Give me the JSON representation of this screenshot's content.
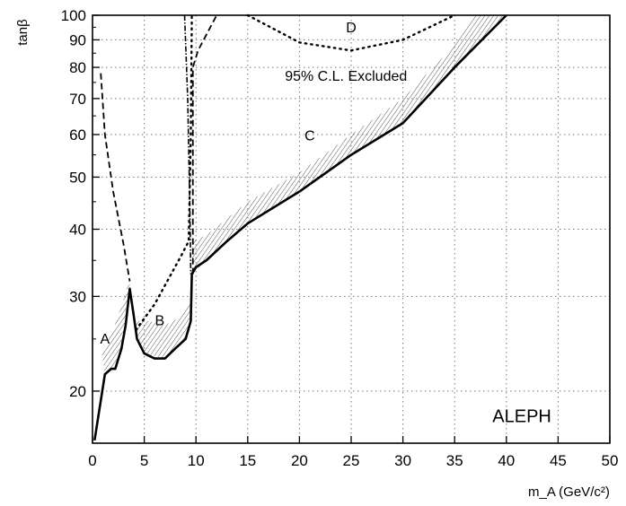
{
  "chart_data": {
    "type": "line",
    "title": "",
    "xlabel": "m_A (GeV/c²)",
    "ylabel": "tanβ",
    "xlim": [
      0,
      50
    ],
    "ylim": [
      16,
      100
    ],
    "yscale": "log",
    "grid": true,
    "x_ticks": [
      0,
      5,
      10,
      15,
      20,
      25,
      30,
      35,
      40,
      45,
      50
    ],
    "y_ticks": [
      20,
      30,
      40,
      50,
      60,
      70,
      80,
      90,
      100
    ],
    "series": [
      {
        "style": "solid",
        "points": [
          [
            0.2,
            16.2
          ],
          [
            1.2,
            21.5
          ],
          [
            1.8,
            22
          ],
          [
            2.2,
            22
          ],
          [
            2.8,
            24
          ],
          [
            3.2,
            26.5
          ],
          [
            3.6,
            31
          ],
          [
            4,
            27.5
          ],
          [
            4.3,
            25
          ],
          [
            5,
            23.5
          ],
          [
            6,
            23
          ],
          [
            7,
            23
          ],
          [
            8,
            24
          ],
          [
            9,
            25
          ],
          [
            9.5,
            27
          ],
          [
            9.6,
            33
          ],
          [
            10,
            34
          ],
          [
            11,
            35
          ],
          [
            13,
            38
          ],
          [
            15,
            41
          ],
          [
            20,
            47
          ],
          [
            25,
            55
          ],
          [
            30,
            63
          ],
          [
            35,
            80
          ],
          [
            40,
            100
          ]
        ]
      },
      {
        "style": "dashed",
        "points": [
          [
            0.8,
            78
          ],
          [
            1.2,
            60
          ],
          [
            2,
            47
          ],
          [
            3,
            37.5
          ],
          [
            3.6,
            32
          ]
        ]
      },
      {
        "style": "dashed",
        "points": [
          [
            9.7,
            33
          ],
          [
            9.7,
            80
          ],
          [
            10.2,
            86
          ],
          [
            12,
            100
          ]
        ]
      },
      {
        "style": "dotted",
        "points": [
          [
            4.2,
            26
          ],
          [
            6,
            29
          ],
          [
            8.5,
            35.5
          ],
          [
            9.3,
            38
          ],
          [
            9.5,
            60
          ],
          [
            9.6,
            100
          ]
        ]
      },
      {
        "style": "dashdot",
        "points": [
          [
            8.9,
            100
          ],
          [
            9.2,
            70
          ],
          [
            9.4,
            45
          ],
          [
            9.5,
            33
          ]
        ]
      },
      {
        "style": "dotted",
        "points": [
          [
            15,
            100
          ],
          [
            20,
            89
          ],
          [
            25,
            86
          ],
          [
            30,
            90
          ],
          [
            35,
            100
          ]
        ]
      }
    ],
    "bands": [
      {
        "name": "hatched-band-A",
        "lower": [
          [
            1.2,
            21.5
          ],
          [
            2.2,
            22
          ],
          [
            3.2,
            26.5
          ],
          [
            3.6,
            31
          ]
        ],
        "upper": [
          [
            0.9,
            23.5
          ],
          [
            2,
            26
          ],
          [
            3.1,
            30
          ],
          [
            3.6,
            32.5
          ]
        ]
      },
      {
        "name": "hatched-band-B",
        "lower": [
          [
            4.3,
            25
          ],
          [
            5,
            23.5
          ],
          [
            7,
            23
          ],
          [
            9,
            25
          ],
          [
            9.5,
            27
          ]
        ],
        "upper": [
          [
            4.2,
            27
          ],
          [
            5.5,
            27
          ],
          [
            7,
            26.5
          ],
          [
            8.5,
            27.5
          ],
          [
            9.6,
            29.5
          ]
        ]
      },
      {
        "name": "hatched-band-C",
        "lower": [
          [
            9.6,
            33
          ],
          [
            11,
            35
          ],
          [
            15,
            41
          ],
          [
            20,
            47
          ],
          [
            25,
            55
          ],
          [
            30,
            63
          ],
          [
            35,
            80
          ],
          [
            40,
            100
          ]
        ],
        "upper": [
          [
            9.7,
            38
          ],
          [
            11,
            39
          ],
          [
            15,
            45
          ],
          [
            20,
            51
          ],
          [
            25,
            60
          ],
          [
            30,
            70
          ],
          [
            35,
            88
          ],
          [
            37,
            100
          ]
        ]
      }
    ],
    "annotations": [
      {
        "text": "A",
        "x": 1.2,
        "y": 24.5
      },
      {
        "text": "B",
        "x": 6.5,
        "y": 26.5
      },
      {
        "text": "C",
        "x": 21,
        "y": 58.5
      },
      {
        "text": "D",
        "x": 25,
        "y": 93
      },
      {
        "text": "95% C.L. Excluded",
        "x": 24.5,
        "y": 75.5
      },
      {
        "text": "ALEPH",
        "x": 41.5,
        "y": 17.5
      }
    ]
  }
}
